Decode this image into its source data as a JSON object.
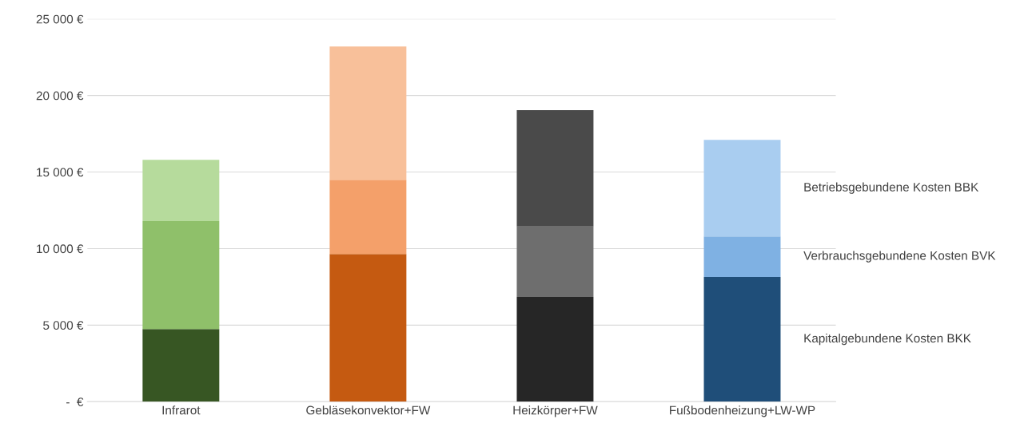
{
  "chart_data": {
    "type": "bar",
    "stacked": true,
    "categories": [
      "Infrarot",
      "Gebläsekonvektor+FW",
      "Heizkörper+FW",
      "Fußbodenheizung+LW-WP"
    ],
    "series": [
      {
        "name": "Kapitalgebundene Kosten BKK",
        "colors": [
          "#375623",
          "#c55a11",
          "#262626",
          "#1f4e79"
        ],
        "values": [
          4750,
          9650,
          6850,
          8150
        ]
      },
      {
        "name": "Verbrauchsgebundene Kosten BVK",
        "colors": [
          "#8fc06a",
          "#f4a06a",
          "#6e6e6e",
          "#7fb1e3"
        ],
        "values": [
          7050,
          4850,
          4600,
          2650
        ]
      },
      {
        "name": "Betriebsgebundene Kosten BBK",
        "colors": [
          "#b6db9c",
          "#f8c09a",
          "#4a4a4a",
          "#a9cdf0"
        ],
        "values": [
          4000,
          8700,
          7600,
          6300
        ]
      }
    ],
    "ylim": [
      0,
      25000
    ],
    "yticks": [
      {
        "value": 0,
        "label": "-  €"
      },
      {
        "value": 5000,
        "label": "5 000 €"
      },
      {
        "value": 10000,
        "label": "10 000 €"
      },
      {
        "value": 15000,
        "label": "15 000 €"
      },
      {
        "value": 20000,
        "label": "20 000 €"
      },
      {
        "value": 25000,
        "label": "25 000 €"
      }
    ],
    "grid": "y",
    "legend": false
  }
}
